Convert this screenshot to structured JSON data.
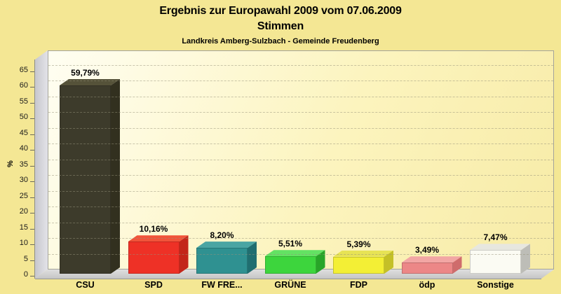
{
  "header": {
    "title": "Ergebnis zur Europawahl 2009 vom 07.06.2009",
    "subtitle": "Stimmen",
    "region": "Landkreis Amberg-Sulzbach - Gemeinde Freudenberg"
  },
  "chart_data": {
    "type": "bar",
    "style": "3d-bars",
    "title": "Ergebnis zur Europawahl 2009 vom 07.06.2009",
    "title_line2": "Stimmen",
    "subtitle": "Landkreis Amberg-Sulzbach - Gemeinde Freudenberg",
    "xlabel": "",
    "ylabel": "%",
    "ylim": [
      0,
      69.5
    ],
    "yticks": [
      0,
      5,
      10,
      15,
      20,
      25,
      30,
      35,
      40,
      45,
      50,
      55,
      60,
      65
    ],
    "grid": "horizontal-dashed",
    "legend": "none",
    "categories": [
      "CSU",
      "SPD",
      "FW FRE...",
      "GRÜNE",
      "FDP",
      "ödp",
      "Sonstige"
    ],
    "values": [
      59.79,
      10.16,
      8.2,
      5.51,
      5.39,
      3.49,
      7.47
    ],
    "value_labels": [
      "59,79%",
      "10,16%",
      "8,20%",
      "5,51%",
      "5,39%",
      "3,49%",
      "7,47%"
    ],
    "bar_colors": [
      {
        "party": "CSU",
        "front": "#3d3b2b",
        "top": "#555239",
        "side": "#32301f"
      },
      {
        "party": "SPD",
        "front": "#ee3126",
        "top": "#f1543a",
        "side": "#c32619"
      },
      {
        "party": "FW FRE...",
        "front": "#2f9191",
        "top": "#4aa5a3",
        "side": "#206e70"
      },
      {
        "party": "GRÜNE",
        "front": "#3dd53d",
        "top": "#63e263",
        "side": "#28a528"
      },
      {
        "party": "FDP",
        "front": "#f3ef35",
        "top": "#e7e355",
        "side": "#c4c027"
      },
      {
        "party": "ödp",
        "front": "#ec8787",
        "top": "#f2a6a4",
        "side": "#cf6c6c"
      },
      {
        "party": "Sonstige",
        "front": "#fbfbf3",
        "top": "#e7e7df",
        "side": "#bdbdb7"
      }
    ]
  },
  "colors": {
    "page_background": "#f4e794",
    "wall_light": "#fffef2",
    "wall_dark": "#f7eba6",
    "side_wall": "#d2d2d8",
    "floor": "#d2d2d2",
    "gridline": "#c9c4b2",
    "text": "#000000"
  }
}
